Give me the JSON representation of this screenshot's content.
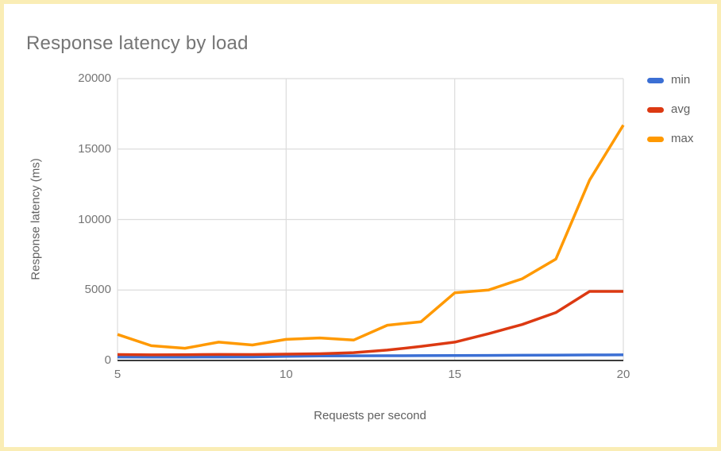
{
  "page": {
    "border_color": "#FAEDB5",
    "background_color": "#FFFFFF"
  },
  "chart_data": {
    "type": "line",
    "title": "Response latency by load",
    "xlabel": "Requests per second",
    "ylabel": "Response latency (ms)",
    "x": [
      5,
      6,
      7,
      8,
      9,
      10,
      11,
      12,
      13,
      14,
      15,
      16,
      17,
      18,
      19,
      20
    ],
    "series": [
      {
        "name": "min",
        "color": "#3B6FD4",
        "values": [
          250,
          245,
          240,
          250,
          255,
          300,
          320,
          330,
          340,
          345,
          350,
          360,
          370,
          380,
          395,
          400
        ]
      },
      {
        "name": "avg",
        "color": "#DC3912",
        "values": [
          420,
          400,
          410,
          430,
          420,
          450,
          480,
          560,
          740,
          1000,
          1300,
          1900,
          2550,
          3400,
          4900,
          4900
        ]
      },
      {
        "name": "max",
        "color": "#FF9900",
        "values": [
          1850,
          1050,
          870,
          1300,
          1100,
          1500,
          1600,
          1450,
          2500,
          2750,
          4800,
          5000,
          5800,
          7200,
          12800,
          16700
        ]
      }
    ],
    "xlim": [
      5,
      20
    ],
    "ylim": [
      0,
      20000
    ],
    "x_ticks": [
      5,
      10,
      15,
      20
    ],
    "y_ticks": [
      0,
      5000,
      10000,
      15000,
      20000
    ],
    "grid": true,
    "legend_position": "right",
    "gridline_color": "#DCDCDC",
    "axis_line_color": "#3C3C3C",
    "tick_label_color": "#757575",
    "axis_title_color": "#616161",
    "title_color": "#757575"
  }
}
